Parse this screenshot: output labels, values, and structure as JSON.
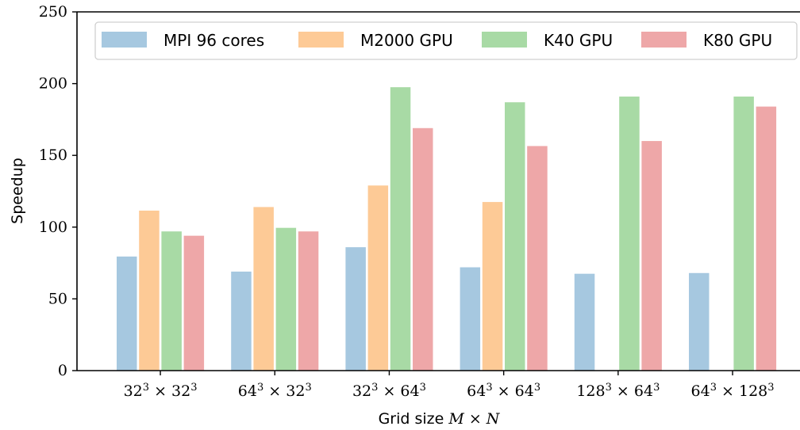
{
  "chart_data": {
    "type": "bar",
    "title": "",
    "xlabel_text": "Grid size",
    "xlabel_math": "M × N",
    "ylabel": "Speedup",
    "ylim": [
      0,
      250
    ],
    "yticks": [
      0,
      50,
      100,
      150,
      200,
      250
    ],
    "grid": false,
    "legend_position": "top",
    "categories": [
      {
        "base1": "32",
        "exp1": "3",
        "base2": "32",
        "exp2": "3"
      },
      {
        "base1": "64",
        "exp1": "3",
        "base2": "32",
        "exp2": "3"
      },
      {
        "base1": "32",
        "exp1": "3",
        "base2": "64",
        "exp2": "3"
      },
      {
        "base1": "64",
        "exp1": "3",
        "base2": "64",
        "exp2": "3"
      },
      {
        "base1": "128",
        "exp1": "3",
        "base2": "64",
        "exp2": "3"
      },
      {
        "base1": "64",
        "exp1": "3",
        "base2": "128",
        "exp2": "3"
      }
    ],
    "series": [
      {
        "name": "MPI 96 cores",
        "color": "#a6c8e0",
        "values": [
          79.5,
          69,
          86,
          72,
          67.5,
          68
        ]
      },
      {
        "name": "M2000 GPU",
        "color": "#fdca96",
        "values": [
          111.5,
          114,
          129,
          117.5,
          null,
          null
        ]
      },
      {
        "name": "K40 GPU",
        "color": "#a8daa5",
        "values": [
          97,
          99.5,
          197.5,
          187,
          191,
          191
        ]
      },
      {
        "name": "K80 GPU",
        "color": "#eea7a8",
        "values": [
          94,
          97,
          169,
          156.5,
          160,
          184
        ]
      }
    ]
  }
}
